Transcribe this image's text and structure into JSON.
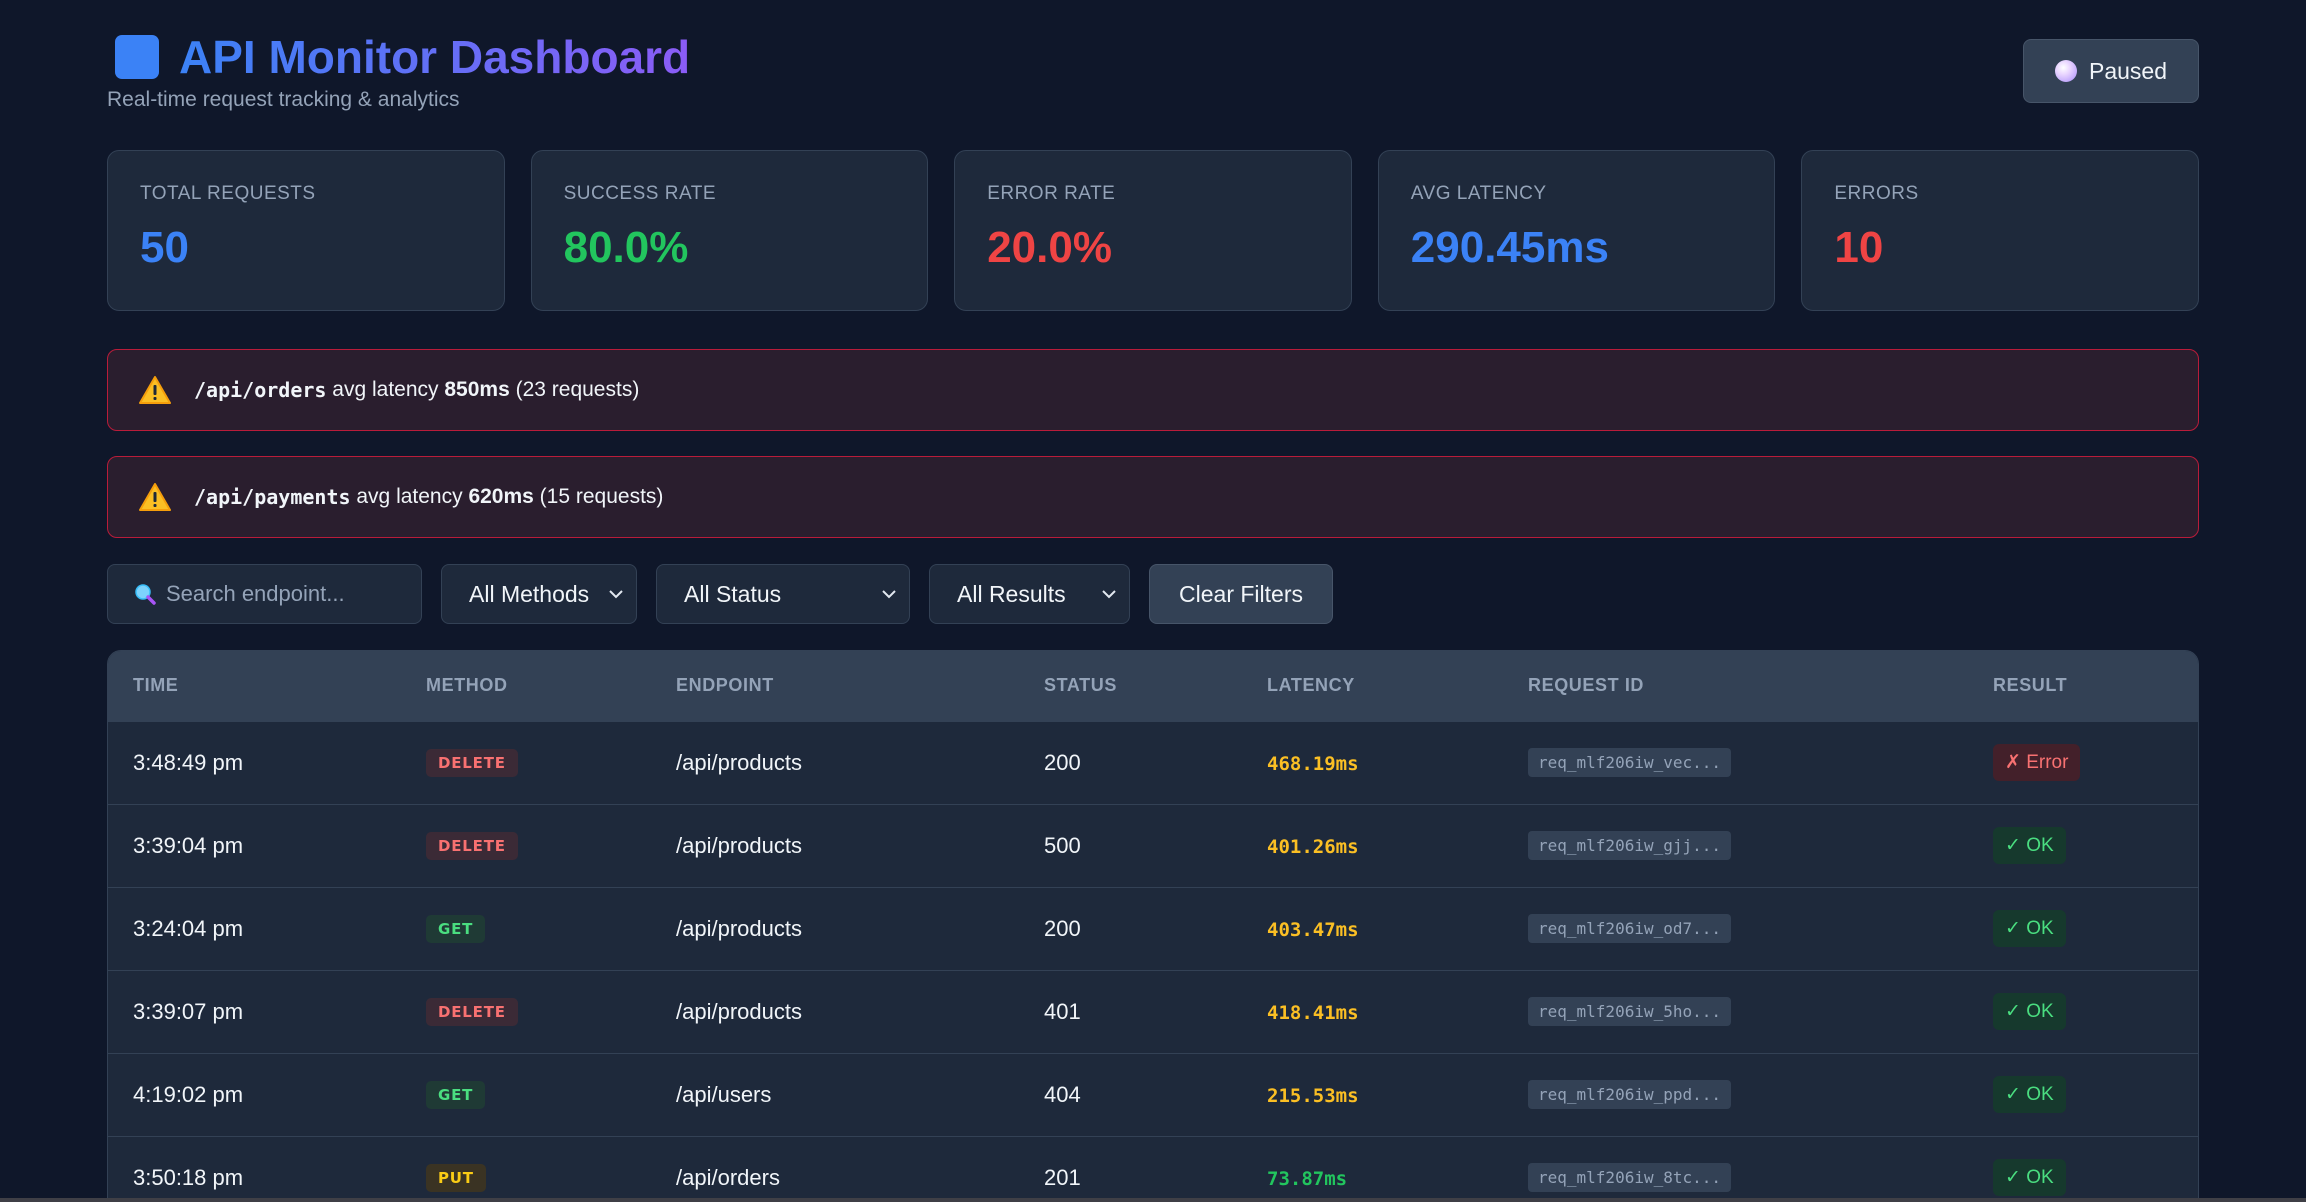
{
  "header": {
    "title": "API Monitor Dashboard",
    "subtitle": "Real-time request tracking & analytics",
    "pause_label": "Paused"
  },
  "stats": [
    {
      "label": "TOTAL REQUESTS",
      "value": "50",
      "color": "#3b82f6"
    },
    {
      "label": "SUCCESS RATE",
      "value": "80.0%",
      "color": "#22c55e"
    },
    {
      "label": "ERROR RATE",
      "value": "20.0%",
      "color": "#ef4444"
    },
    {
      "label": "AVG LATENCY",
      "value": "290.45ms",
      "color": "#3b82f6"
    },
    {
      "label": "ERRORS",
      "value": "10",
      "color": "#ef4444"
    }
  ],
  "alerts": [
    {
      "endpoint": "/api/orders",
      "text1": " avg latency ",
      "latency": "850ms",
      "text2": " (23 requests)"
    },
    {
      "endpoint": "/api/payments",
      "text1": " avg latency ",
      "latency": "620ms",
      "text2": " (15 requests)"
    }
  ],
  "filters": {
    "search_placeholder": "Search endpoint...",
    "methods": "All Methods",
    "status": "All Status",
    "results": "All Results",
    "clear_label": "Clear Filters"
  },
  "table": {
    "columns": [
      "TIME",
      "METHOD",
      "ENDPOINT",
      "STATUS",
      "LATENCY",
      "REQUEST ID",
      "RESULT"
    ],
    "rows": [
      {
        "time": "3:48:49 pm",
        "method": "DELETE",
        "endpoint": "/api/products",
        "status": "200",
        "latency": "468.19ms",
        "request_id": "req_mlf206iw_vec...",
        "result": "✗ Error"
      },
      {
        "time": "3:39:04 pm",
        "method": "DELETE",
        "endpoint": "/api/products",
        "status": "500",
        "latency": "401.26ms",
        "request_id": "req_mlf206iw_gjj...",
        "result": "✓ OK"
      },
      {
        "time": "3:24:04 pm",
        "method": "GET",
        "endpoint": "/api/products",
        "status": "200",
        "latency": "403.47ms",
        "request_id": "req_mlf206iw_od7...",
        "result": "✓ OK"
      },
      {
        "time": "3:39:07 pm",
        "method": "DELETE",
        "endpoint": "/api/products",
        "status": "401",
        "latency": "418.41ms",
        "request_id": "req_mlf206iw_5ho...",
        "result": "✓ OK"
      },
      {
        "time": "4:19:02 pm",
        "method": "GET",
        "endpoint": "/api/users",
        "status": "404",
        "latency": "215.53ms",
        "request_id": "req_mlf206iw_ppd...",
        "result": "✓ OK"
      },
      {
        "time": "3:50:18 pm",
        "method": "PUT",
        "endpoint": "/api/orders",
        "status": "201",
        "latency": "73.87ms",
        "request_id": "req_mlf206iw_8tc...",
        "result": "✓ OK"
      }
    ]
  }
}
